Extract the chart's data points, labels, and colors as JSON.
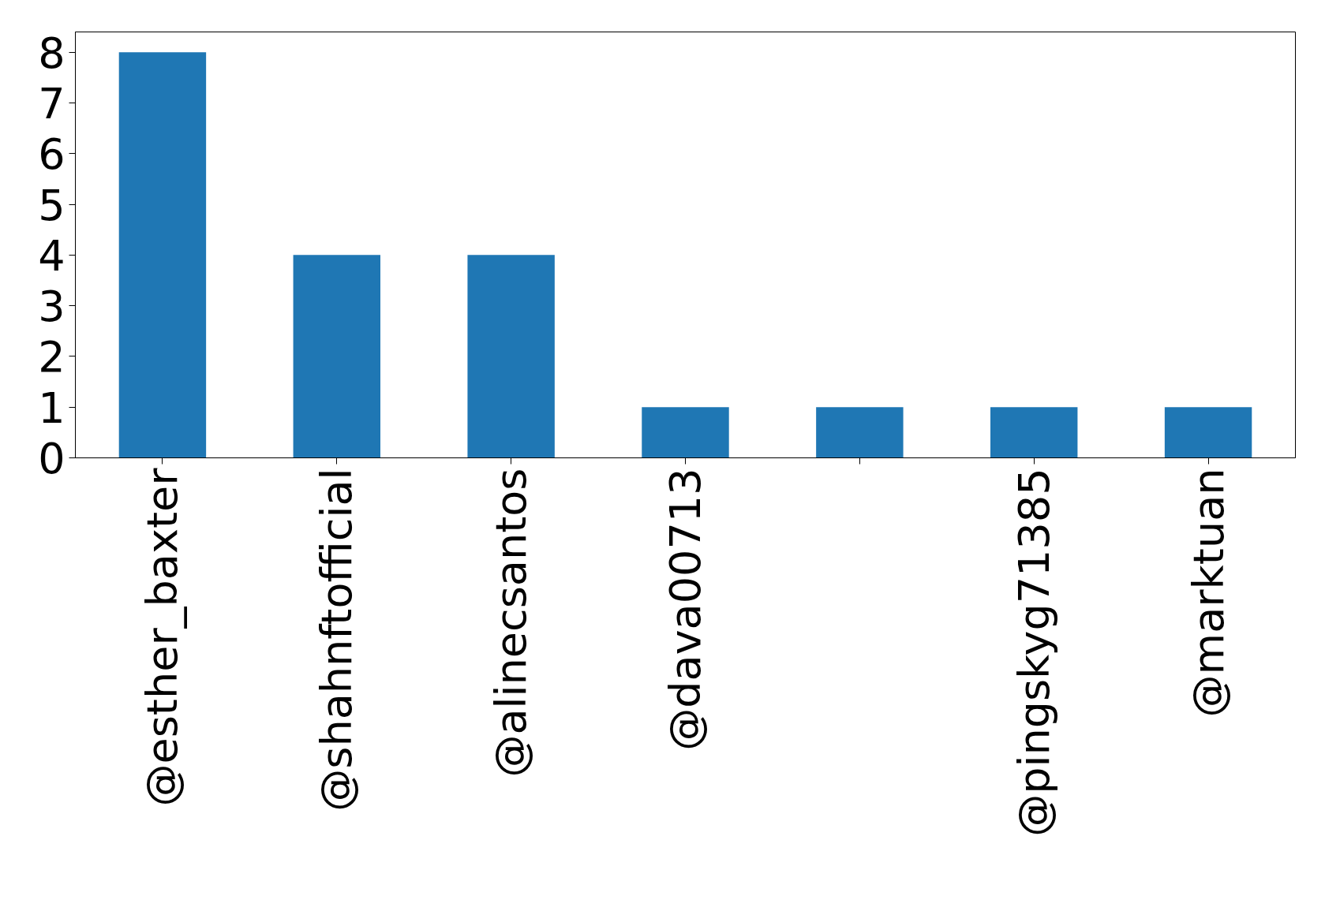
{
  "chart_data": {
    "type": "bar",
    "categories": [
      "@esther_baxter",
      "@shahnftofficial",
      "@alinecsantos",
      "@dava00713",
      null,
      "@pingskyg71385",
      "@marktuan"
    ],
    "values": [
      8,
      4,
      4,
      1,
      1,
      1,
      1
    ],
    "color": "#1f77b4",
    "ylim": [
      0,
      8.4
    ],
    "yticks": [
      0,
      1,
      2,
      3,
      4,
      5,
      6,
      7,
      8
    ],
    "grid": false
  }
}
